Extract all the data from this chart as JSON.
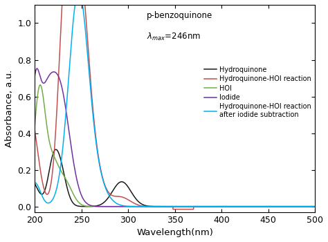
{
  "xlabel": "Wavelength(nm)",
  "ylabel": "Absorbance, a.u.",
  "xlim": [
    200,
    500
  ],
  "ylim": [
    -0.03,
    1.1
  ],
  "yticks": [
    0.0,
    0.2,
    0.4,
    0.6,
    0.8,
    1.0
  ],
  "xticks": [
    200,
    250,
    300,
    350,
    400,
    450,
    500
  ],
  "annotation_1": "p-benzoquinone",
  "annotation_2": "$\\lambda_{max}$=246nm",
  "colors": {
    "hydroquinone": "#1a1a1a",
    "hoi_reaction": "#c0504d",
    "hoi": "#70ad47",
    "iodide": "#7030a0",
    "hoi_sub": "#00b0f0"
  },
  "legend_labels": [
    "Hydroquinone",
    "Hydroquinone-HOI reaction",
    "HOI",
    "Iodide",
    "Hydroquinone-HOI reaction\nafter iodide subtraction"
  ],
  "background_color": "#ffffff"
}
